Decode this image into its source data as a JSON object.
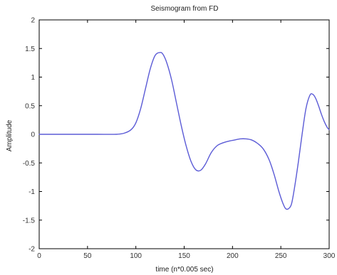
{
  "chart_data": {
    "type": "line",
    "title": "Seismogram from FD",
    "xlabel": "time (n*0.005 sec)",
    "ylabel": "Amplitude",
    "xlim": [
      0,
      300
    ],
    "ylim": [
      -2,
      2
    ],
    "xticks": [
      0,
      50,
      100,
      150,
      200,
      250,
      300
    ],
    "yticks": [
      -2,
      -1.5,
      -1,
      -0.5,
      0,
      0.5,
      1,
      1.5,
      2
    ],
    "xtick_labels": [
      "0",
      "50",
      "100",
      "150",
      "200",
      "250",
      "300"
    ],
    "ytick_labels": [
      "-2",
      "-1.5",
      "-1",
      "-0.5",
      "0",
      "0.5",
      "1",
      "1.5",
      "2"
    ],
    "grid": false,
    "line_color": "#5b5bd6",
    "series": [
      {
        "x": [
          0,
          20,
          40,
          60,
          80,
          88,
          95,
          100,
          105,
          110,
          115,
          120,
          125,
          128,
          132,
          137,
          142,
          147,
          152,
          157,
          162,
          167,
          172,
          178,
          184,
          190,
          196,
          202,
          208,
          214,
          220,
          226,
          232,
          238,
          243,
          248,
          252,
          255,
          258,
          261,
          264,
          268,
          272,
          276,
          280,
          283,
          286,
          289,
          292,
          295,
          298,
          300
        ],
        "y": [
          0,
          0,
          0,
          0,
          0,
          0.02,
          0.08,
          0.2,
          0.45,
          0.8,
          1.15,
          1.38,
          1.43,
          1.4,
          1.25,
          0.95,
          0.55,
          0.15,
          -0.2,
          -0.47,
          -0.62,
          -0.63,
          -0.52,
          -0.32,
          -0.2,
          -0.15,
          -0.12,
          -0.1,
          -0.08,
          -0.08,
          -0.1,
          -0.16,
          -0.26,
          -0.45,
          -0.7,
          -1.0,
          -1.2,
          -1.3,
          -1.3,
          -1.22,
          -0.95,
          -0.5,
          0.0,
          0.45,
          0.68,
          0.7,
          0.63,
          0.5,
          0.35,
          0.22,
          0.12,
          0.08
        ]
      }
    ]
  }
}
